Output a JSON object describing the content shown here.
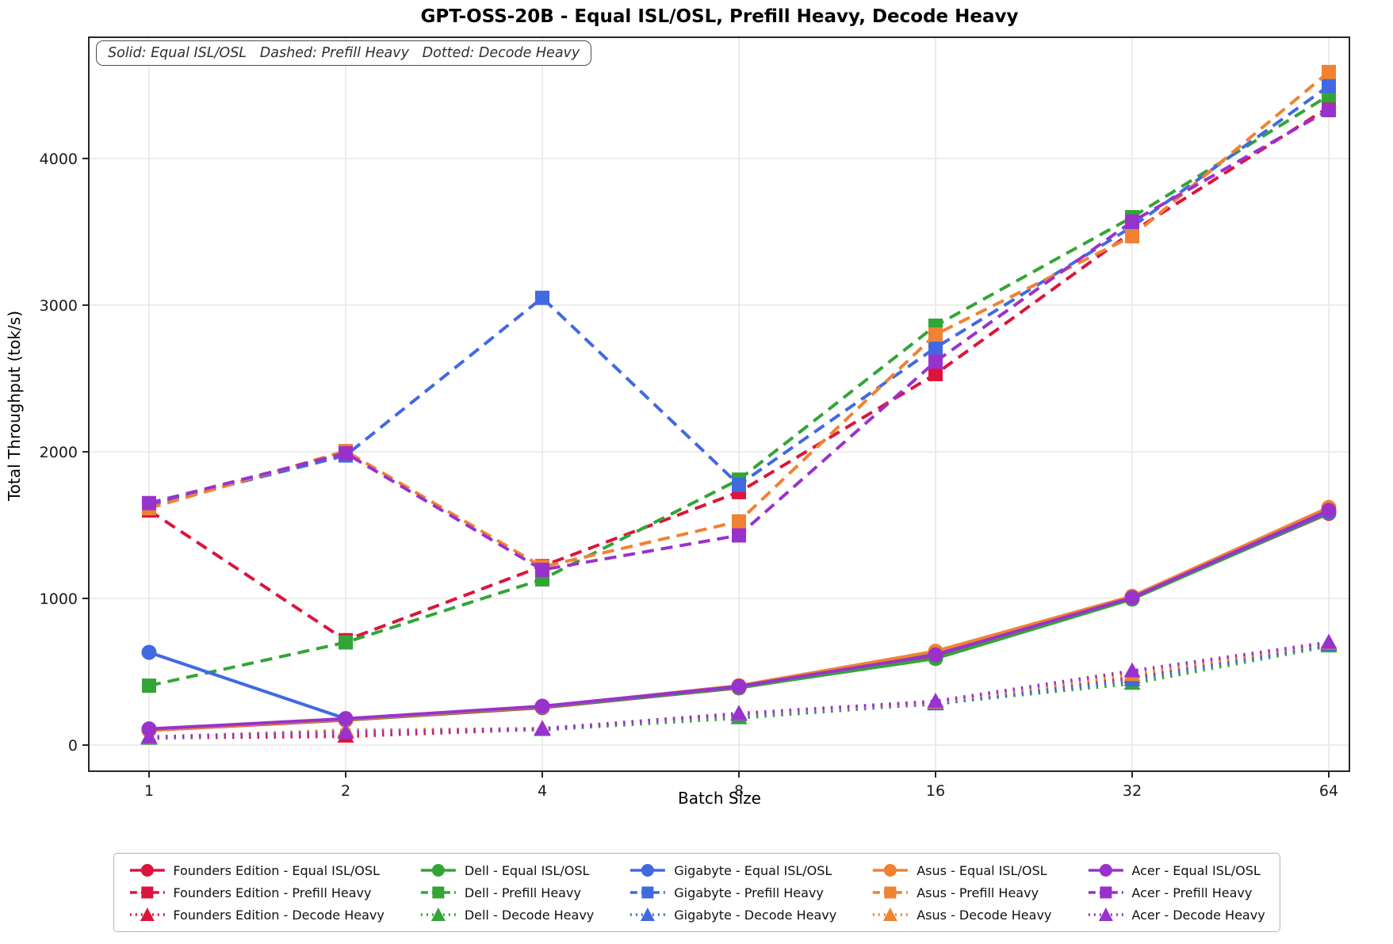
{
  "title": "GPT-OSS-20B - Equal ISL/OSL, Prefill Heavy, Decode Heavy",
  "annotation": "Solid: Equal ISL/OSL   Dashed: Prefill Heavy   Dotted: Decode Heavy",
  "chart_data": {
    "type": "line",
    "title": "GPT-OSS-20B - Equal ISL/OSL, Prefill Heavy, Decode Heavy",
    "xlabel": "Batch Size",
    "ylabel": "Total Throughput (tok/s)",
    "x": [
      1,
      2,
      4,
      8,
      16,
      32,
      64
    ],
    "x_scale": "log2",
    "xtick_labels": [
      "1",
      "2",
      "4",
      "8",
      "16",
      "32",
      "64"
    ],
    "yticks": [
      0,
      1000,
      2000,
      3000,
      4000
    ],
    "ylim": [
      -180,
      4830
    ],
    "grid": true,
    "legend_position": "below",
    "legend_note": "Solid: Equal ISL/OSL   Dashed: Prefill Heavy   Dotted: Decode Heavy",
    "vendors": [
      {
        "name": "Founders Edition",
        "color": "#DC143C"
      },
      {
        "name": "Dell",
        "color": "#33A537"
      },
      {
        "name": "Gigabyte",
        "color": "#4169E1"
      },
      {
        "name": "Asus",
        "color": "#F08232"
      },
      {
        "name": "Acer",
        "color": "#9932CC"
      }
    ],
    "series": [
      {
        "vendor": "Founders Edition",
        "workload": "Equal ISL/OSL",
        "label": "Founders Edition - Equal ISL/OSL",
        "style": "solid",
        "marker": "circle",
        "values": [
          100,
          170,
          255,
          390,
          600,
          1000,
          1580
        ]
      },
      {
        "vendor": "Founders Edition",
        "workload": "Prefill Heavy",
        "label": "Founders Edition - Prefill Heavy",
        "style": "dashed",
        "marker": "square",
        "values": [
          1600,
          715,
          1220,
          1725,
          2530,
          3500,
          4350
        ]
      },
      {
        "vendor": "Founders Edition",
        "workload": "Decode Heavy",
        "label": "Founders Edition - Decode Heavy",
        "style": "dotted",
        "marker": "triangle",
        "values": [
          50,
          60,
          110,
          210,
          290,
          465,
          690
        ]
      },
      {
        "vendor": "Dell",
        "workload": "Equal ISL/OSL",
        "label": "Dell - Equal ISL/OSL",
        "style": "solid",
        "marker": "circle",
        "values": [
          105,
          172,
          258,
          392,
          590,
          995,
          1585
        ]
      },
      {
        "vendor": "Dell",
        "workload": "Prefill Heavy",
        "label": "Dell - Prefill Heavy",
        "style": "dashed",
        "marker": "square",
        "values": [
          405,
          700,
          1130,
          1810,
          2860,
          3600,
          4430
        ]
      },
      {
        "vendor": "Dell",
        "workload": "Decode Heavy",
        "label": "Dell - Decode Heavy",
        "style": "dotted",
        "marker": "triangle",
        "values": [
          45,
          95,
          105,
          185,
          285,
          420,
          675
        ]
      },
      {
        "vendor": "Gigabyte",
        "workload": "Equal ISL/OSL",
        "label": "Gigabyte - Equal ISL/OSL",
        "style": "solid",
        "marker": "circle",
        "values": [
          632,
          180,
          262,
          398,
          625,
          1010,
          1590
        ]
      },
      {
        "vendor": "Gigabyte",
        "workload": "Prefill Heavy",
        "label": "Gigabyte - Prefill Heavy",
        "style": "dashed",
        "marker": "square",
        "values": [
          1635,
          1975,
          3050,
          1775,
          2710,
          3535,
          4495
        ]
      },
      {
        "vendor": "Gigabyte",
        "workload": "Decode Heavy",
        "label": "Gigabyte - Decode Heavy",
        "style": "dotted",
        "marker": "triangle",
        "values": [
          48,
          100,
          108,
          205,
          280,
          445,
          685
        ]
      },
      {
        "vendor": "Asus",
        "workload": "Equal ISL/OSL",
        "label": "Asus - Equal ISL/OSL",
        "style": "solid",
        "marker": "circle",
        "values": [
          100,
          175,
          262,
          405,
          640,
          1015,
          1620
        ]
      },
      {
        "vendor": "Asus",
        "workload": "Prefill Heavy",
        "label": "Asus - Prefill Heavy",
        "style": "dashed",
        "marker": "square",
        "values": [
          1615,
          2005,
          1215,
          1525,
          2800,
          3470,
          4590
        ]
      },
      {
        "vendor": "Asus",
        "workload": "Decode Heavy",
        "label": "Asus - Decode Heavy",
        "style": "dotted",
        "marker": "triangle",
        "values": [
          52,
          100,
          112,
          212,
          292,
          480,
          695
        ]
      },
      {
        "vendor": "Acer",
        "workload": "Equal ISL/OSL",
        "label": "Acer - Equal ISL/OSL",
        "style": "solid",
        "marker": "circle",
        "values": [
          110,
          180,
          265,
          400,
          615,
          1005,
          1600
        ]
      },
      {
        "vendor": "Acer",
        "workload": "Prefill Heavy",
        "label": "Acer - Prefill Heavy",
        "style": "dashed",
        "marker": "square",
        "values": [
          1650,
          1990,
          1195,
          1430,
          2615,
          3570,
          4330
        ]
      },
      {
        "vendor": "Acer",
        "workload": "Decode Heavy",
        "label": "Acer - Decode Heavy",
        "style": "dotted",
        "marker": "triangle",
        "values": [
          55,
          85,
          110,
          215,
          298,
          505,
          700
        ]
      }
    ]
  },
  "colors": {
    "grid": "#e7e7e7",
    "spine": "#262626",
    "tick_label": "#1a1a1a"
  }
}
